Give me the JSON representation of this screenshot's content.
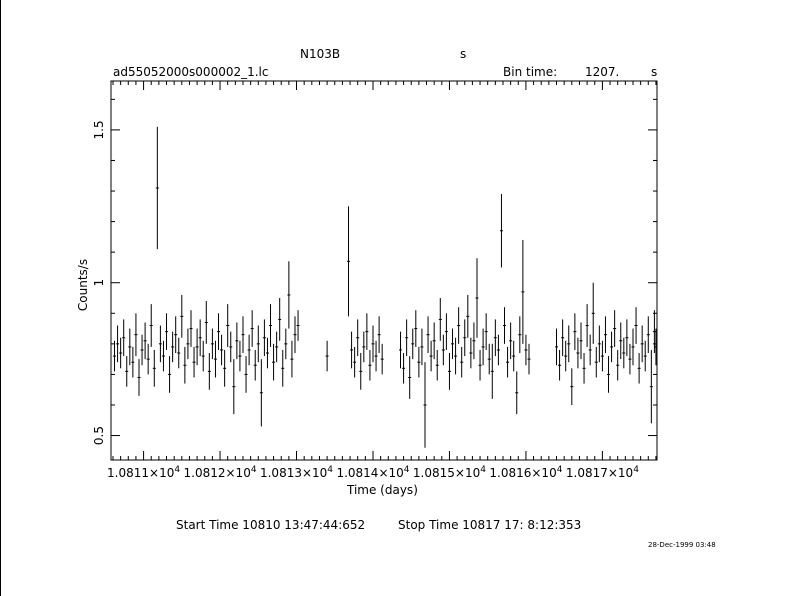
{
  "header": {
    "object": "N103B",
    "object_unit": "s",
    "filename": "ad55052000s000002_1.lc",
    "bin_label": "Bin time:",
    "bin_value": "1207.",
    "bin_unit": "s"
  },
  "footer": {
    "start_time": "Start Time 10810 13:47:44:652",
    "stop_time": "Stop Time 10817 17: 8:12:353",
    "timestamp": "28-Dec-1999 03:48"
  },
  "chart_data": {
    "type": "scatter",
    "xlabel": "Time (days)",
    "ylabel": "Counts/s",
    "xlim": [
      10810.574,
      10817.714
    ],
    "ylim": [
      0.42,
      1.66
    ],
    "x_ticks": [
      10811,
      10812,
      10813,
      10814,
      10815,
      10816,
      10817
    ],
    "x_tick_mantissa": [
      "1.0811",
      "1.0812",
      "1.0813",
      "1.0814",
      "1.0815",
      "1.0816",
      "1.0817"
    ],
    "x_tick_suffix": "×10",
    "x_tick_exponent": "4",
    "y_ticks": [
      0.5,
      1,
      1.5
    ],
    "y_tick_labels": [
      "0.5",
      "1",
      "1.5"
    ],
    "points": [
      [
        10810.62,
        0.76,
        0.05
      ],
      [
        10810.66,
        0.8,
        0.06
      ],
      [
        10810.7,
        0.77,
        0.05
      ],
      [
        10810.74,
        0.82,
        0.06
      ],
      [
        10810.78,
        0.71,
        0.05
      ],
      [
        10810.82,
        0.79,
        0.06
      ],
      [
        10810.86,
        0.74,
        0.05
      ],
      [
        10810.9,
        0.83,
        0.07
      ],
      [
        10810.94,
        0.69,
        0.06
      ],
      [
        10810.98,
        0.78,
        0.05
      ],
      [
        10811.02,
        0.81,
        0.06
      ],
      [
        10811.06,
        0.75,
        0.05
      ],
      [
        10811.1,
        0.86,
        0.07
      ],
      [
        10811.14,
        0.72,
        0.06
      ],
      [
        10811.18,
        1.31,
        0.2
      ],
      [
        10811.22,
        0.8,
        0.06
      ],
      [
        10811.26,
        0.76,
        0.05
      ],
      [
        10811.3,
        0.84,
        0.06
      ],
      [
        10811.34,
        0.7,
        0.06
      ],
      [
        10811.38,
        0.79,
        0.05
      ],
      [
        10811.42,
        0.83,
        0.06
      ],
      [
        10811.46,
        0.77,
        0.05
      ],
      [
        10811.5,
        0.89,
        0.07
      ],
      [
        10811.54,
        0.73,
        0.06
      ],
      [
        10811.58,
        0.8,
        0.05
      ],
      [
        10811.62,
        0.85,
        0.06
      ],
      [
        10811.66,
        0.74,
        0.05
      ],
      [
        10811.7,
        0.79,
        0.06
      ],
      [
        10811.74,
        0.82,
        0.06
      ],
      [
        10811.78,
        0.76,
        0.05
      ],
      [
        10811.82,
        0.87,
        0.07
      ],
      [
        10811.86,
        0.71,
        0.06
      ],
      [
        10811.9,
        0.8,
        0.05
      ],
      [
        10811.94,
        0.75,
        0.06
      ],
      [
        10811.98,
        0.84,
        0.06
      ],
      [
        10812.02,
        0.78,
        0.05
      ],
      [
        10812.06,
        0.72,
        0.06
      ],
      [
        10812.1,
        0.86,
        0.07
      ],
      [
        10812.14,
        0.79,
        0.05
      ],
      [
        10812.18,
        0.66,
        0.09
      ],
      [
        10812.22,
        0.81,
        0.06
      ],
      [
        10812.26,
        0.76,
        0.05
      ],
      [
        10812.3,
        0.83,
        0.06
      ],
      [
        10812.34,
        0.7,
        0.06
      ],
      [
        10812.38,
        0.78,
        0.05
      ],
      [
        10812.42,
        0.85,
        0.06
      ],
      [
        10812.46,
        0.73,
        0.05
      ],
      [
        10812.5,
        0.8,
        0.06
      ],
      [
        10812.54,
        0.64,
        0.11
      ],
      [
        10812.58,
        0.82,
        0.06
      ],
      [
        10812.62,
        0.77,
        0.05
      ],
      [
        10812.66,
        0.86,
        0.07
      ],
      [
        10812.7,
        0.74,
        0.06
      ],
      [
        10812.74,
        0.79,
        0.05
      ],
      [
        10812.78,
        0.88,
        0.07
      ],
      [
        10812.82,
        0.72,
        0.06
      ],
      [
        10812.86,
        0.8,
        0.05
      ],
      [
        10812.9,
        0.96,
        0.11
      ],
      [
        10812.94,
        0.75,
        0.06
      ],
      [
        10812.98,
        0.83,
        0.06
      ],
      [
        10813.02,
        0.86,
        0.05
      ],
      [
        10813.4,
        0.76,
        0.05
      ],
      [
        10813.68,
        1.07,
        0.18
      ],
      [
        10813.72,
        0.78,
        0.06
      ],
      [
        10813.76,
        0.74,
        0.05
      ],
      [
        10813.8,
        0.82,
        0.06
      ],
      [
        10813.84,
        0.71,
        0.06
      ],
      [
        10813.88,
        0.79,
        0.05
      ],
      [
        10813.92,
        0.84,
        0.06
      ],
      [
        10813.96,
        0.73,
        0.05
      ],
      [
        10814.0,
        0.8,
        0.06
      ],
      [
        10814.04,
        0.76,
        0.05
      ],
      [
        10814.08,
        0.83,
        0.06
      ],
      [
        10814.12,
        0.75,
        0.05
      ],
      [
        10814.36,
        0.78,
        0.06
      ],
      [
        10814.4,
        0.72,
        0.05
      ],
      [
        10814.44,
        0.82,
        0.06
      ],
      [
        10814.48,
        0.69,
        0.07
      ],
      [
        10814.52,
        0.8,
        0.05
      ],
      [
        10814.56,
        0.85,
        0.06
      ],
      [
        10814.6,
        0.74,
        0.05
      ],
      [
        10814.64,
        0.79,
        0.06
      ],
      [
        10814.68,
        0.6,
        0.14
      ],
      [
        10814.72,
        0.83,
        0.06
      ],
      [
        10814.76,
        0.76,
        0.05
      ],
      [
        10814.8,
        0.81,
        0.06
      ],
      [
        10814.84,
        0.73,
        0.05
      ],
      [
        10814.88,
        0.88,
        0.07
      ],
      [
        10814.92,
        0.78,
        0.05
      ],
      [
        10814.96,
        0.84,
        0.06
      ],
      [
        10815.0,
        0.71,
        0.06
      ],
      [
        10815.04,
        0.8,
        0.05
      ],
      [
        10815.08,
        0.76,
        0.06
      ],
      [
        10815.12,
        0.86,
        0.06
      ],
      [
        10815.16,
        0.74,
        0.05
      ],
      [
        10815.2,
        0.82,
        0.06
      ],
      [
        10815.24,
        0.89,
        0.07
      ],
      [
        10815.28,
        0.77,
        0.05
      ],
      [
        10815.32,
        0.81,
        0.06
      ],
      [
        10815.36,
        0.95,
        0.13
      ],
      [
        10815.4,
        0.73,
        0.05
      ],
      [
        10815.44,
        0.79,
        0.06
      ],
      [
        10815.48,
        0.84,
        0.06
      ],
      [
        10815.52,
        0.75,
        0.05
      ],
      [
        10815.56,
        0.71,
        0.09
      ],
      [
        10815.6,
        0.82,
        0.06
      ],
      [
        10815.64,
        0.78,
        0.05
      ],
      [
        10815.68,
        1.17,
        0.12
      ],
      [
        10815.72,
        0.86,
        0.06
      ],
      [
        10815.76,
        0.74,
        0.05
      ],
      [
        10815.8,
        0.81,
        0.06
      ],
      [
        10815.84,
        0.76,
        0.05
      ],
      [
        10815.88,
        0.64,
        0.07
      ],
      [
        10815.92,
        0.83,
        0.06
      ],
      [
        10815.96,
        0.97,
        0.17
      ],
      [
        10816.0,
        0.78,
        0.05
      ],
      [
        10816.04,
        0.75,
        0.05
      ],
      [
        10816.4,
        0.79,
        0.06
      ],
      [
        10816.44,
        0.73,
        0.05
      ],
      [
        10816.48,
        0.82,
        0.06
      ],
      [
        10816.52,
        0.76,
        0.05
      ],
      [
        10816.56,
        0.8,
        0.06
      ],
      [
        10816.6,
        0.66,
        0.06
      ],
      [
        10816.64,
        0.84,
        0.06
      ],
      [
        10816.68,
        0.77,
        0.05
      ],
      [
        10816.72,
        0.81,
        0.06
      ],
      [
        10816.76,
        0.72,
        0.05
      ],
      [
        10816.8,
        0.86,
        0.07
      ],
      [
        10816.84,
        0.78,
        0.05
      ],
      [
        10816.88,
        0.9,
        0.1
      ],
      [
        10816.92,
        0.74,
        0.05
      ],
      [
        10816.96,
        0.8,
        0.06
      ],
      [
        10817.0,
        0.76,
        0.05
      ],
      [
        10817.04,
        0.83,
        0.06
      ],
      [
        10817.08,
        0.7,
        0.06
      ],
      [
        10817.12,
        0.79,
        0.05
      ],
      [
        10817.16,
        0.85,
        0.06
      ],
      [
        10817.2,
        0.73,
        0.05
      ],
      [
        10817.24,
        0.81,
        0.06
      ],
      [
        10817.28,
        0.77,
        0.05
      ],
      [
        10817.32,
        0.82,
        0.06
      ],
      [
        10817.36,
        0.75,
        0.05
      ],
      [
        10817.4,
        0.79,
        0.06
      ],
      [
        10817.44,
        0.86,
        0.06
      ],
      [
        10817.48,
        0.72,
        0.05
      ],
      [
        10817.52,
        0.8,
        0.06
      ],
      [
        10817.56,
        0.76,
        0.05
      ],
      [
        10817.6,
        0.83,
        0.06
      ],
      [
        10817.64,
        0.66,
        0.12
      ],
      [
        10817.68,
        0.84,
        0.07
      ],
      [
        10817.7,
        0.79,
        0.06
      ]
    ]
  }
}
